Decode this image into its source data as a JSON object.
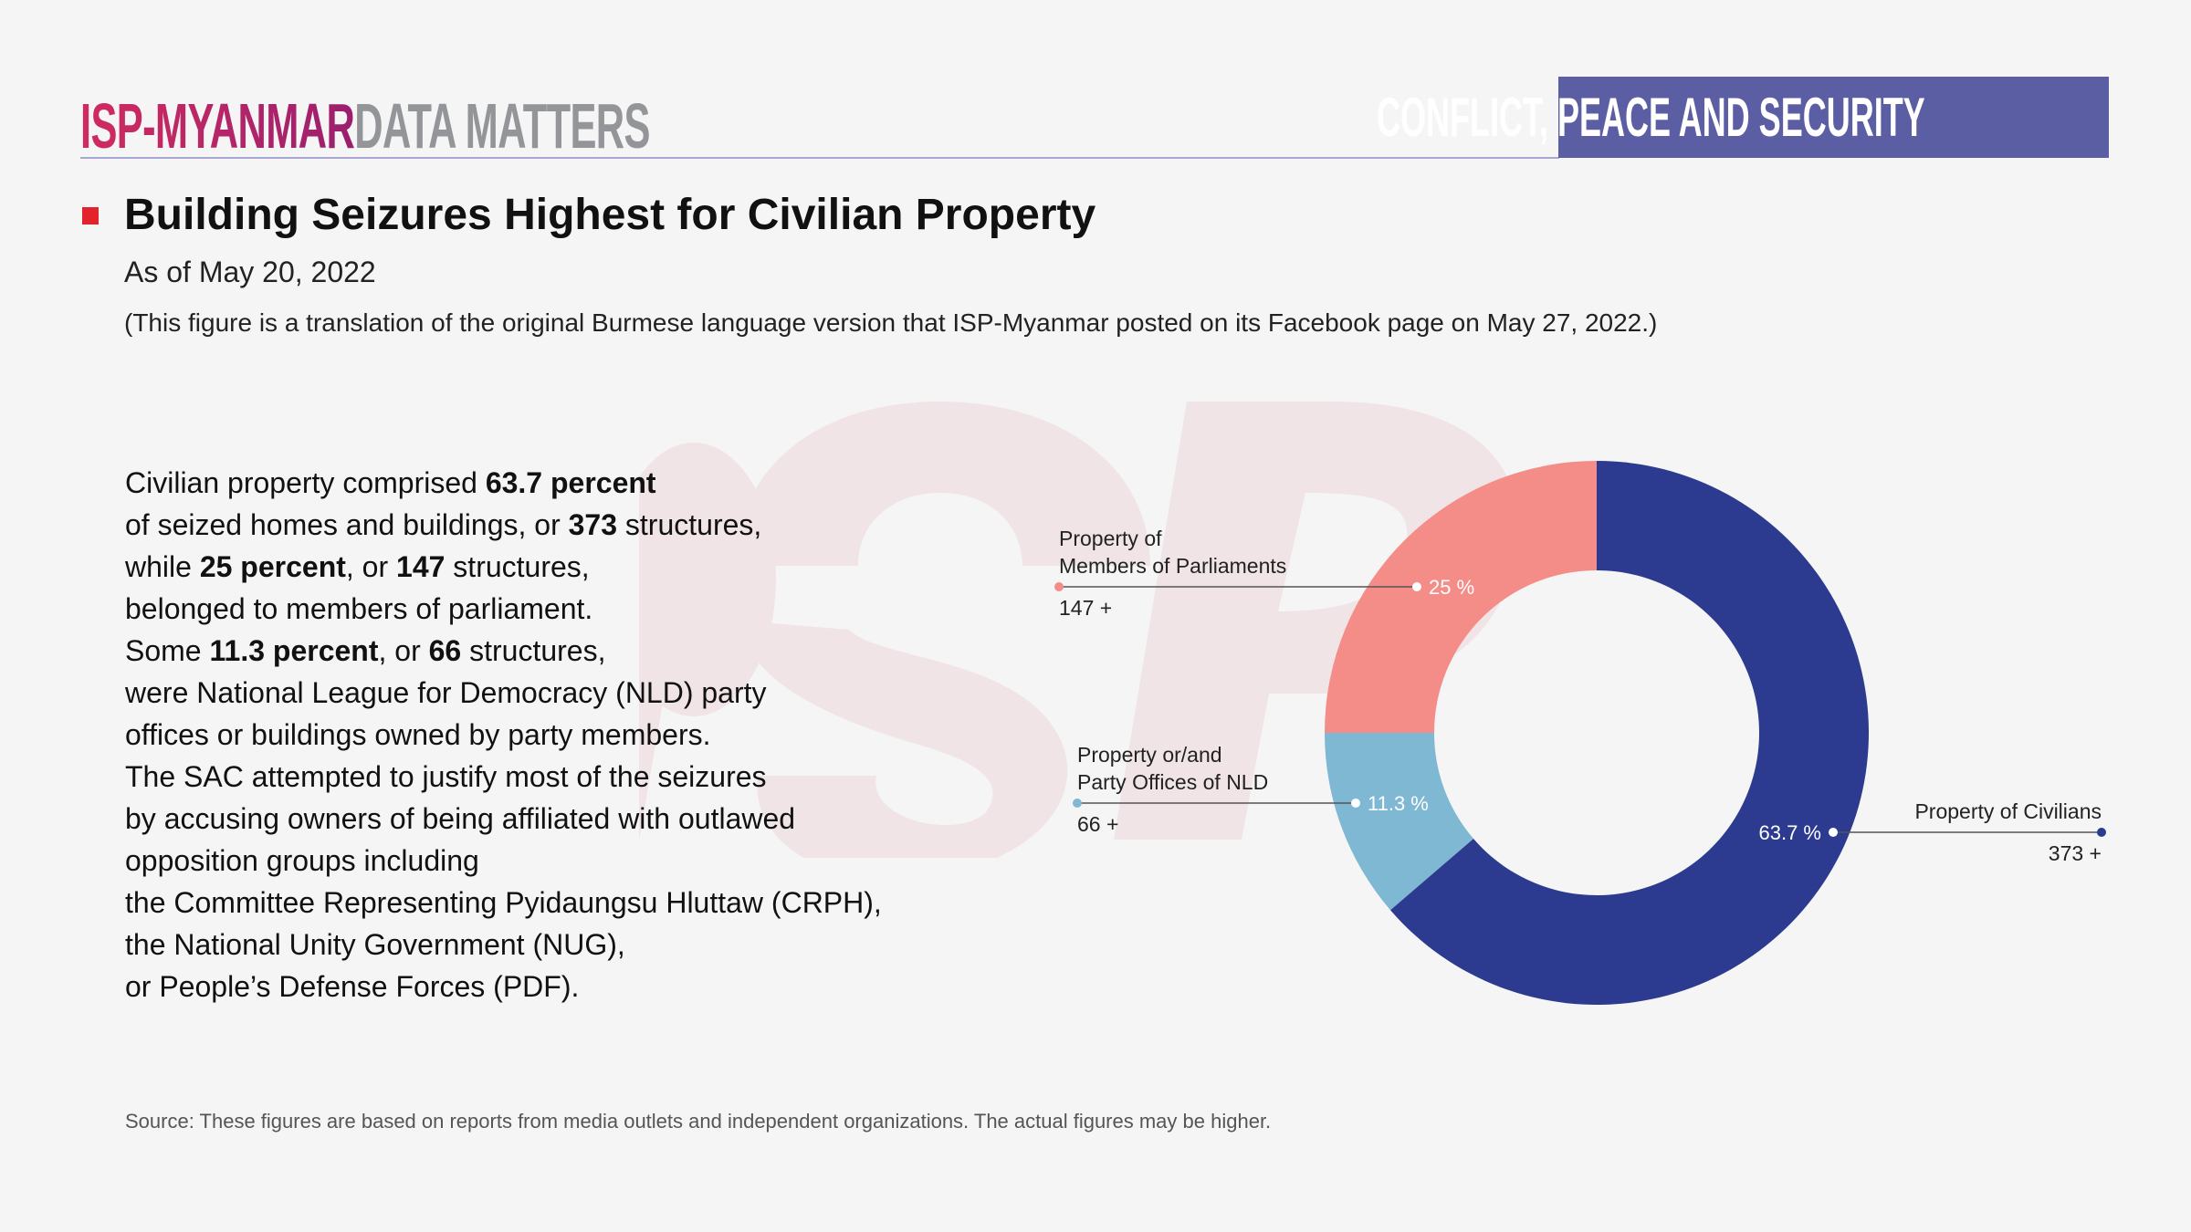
{
  "header": {
    "brand_primary": "ISP-MYANMAR",
    "brand_secondary": "DATA MATTERS",
    "category_badge": "CONFLICT, PEACE AND SECURITY",
    "colors": {
      "brand_primary": "#C42A66",
      "brand_secondary": "#939598",
      "badge": "#5C5EA4",
      "rule": "#A9A6D1",
      "title_marker": "#E3232C"
    }
  },
  "title": "Building Seizures Highest for Civilian Property",
  "subtitle": "As of May 20, 2022",
  "note": "(This figure is a translation of the original Burmese language version that ISP-Myanmar posted on its Facebook page on May 27, 2022.)",
  "body": {
    "lines": [
      [
        {
          "t": "Civilian property comprised "
        },
        {
          "t": "63.7 percent",
          "b": true
        }
      ],
      [
        {
          "t": "of seized homes and buildings, or "
        },
        {
          "t": "373",
          "b": true
        },
        {
          "t": " structures,"
        }
      ],
      [
        {
          "t": "while "
        },
        {
          "t": "25 percent",
          "b": true
        },
        {
          "t": ", or "
        },
        {
          "t": "147",
          "b": true
        },
        {
          "t": " structures,"
        }
      ],
      [
        {
          "t": "belonged to members of parliament."
        }
      ],
      [
        {
          "t": "Some "
        },
        {
          "t": "11.3 percent",
          "b": true
        },
        {
          "t": ", or "
        },
        {
          "t": "66",
          "b": true
        },
        {
          "t": " structures,"
        }
      ],
      [
        {
          "t": "were National League for Democracy (NLD) party"
        }
      ],
      [
        {
          "t": "offices or buildings owned by party members."
        }
      ],
      [
        {
          "t": "The SAC attempted to justify most of the seizures"
        }
      ],
      [
        {
          "t": "by accusing owners of being affiliated with outlawed"
        }
      ],
      [
        {
          "t": "opposition groups including"
        }
      ],
      [
        {
          "t": "the Committee Representing Pyidaungsu Hluttaw (CRPH),"
        }
      ],
      [
        {
          "t": "the National Unity Government (NUG),"
        }
      ],
      [
        {
          "t": "or People’s Defense Forces (PDF)."
        }
      ]
    ]
  },
  "source": "Source: These figures are based on reports from media outlets and independent organizations. The actual figures may be higher.",
  "watermark": "isp",
  "chart_data": {
    "type": "pie",
    "variant": "donut",
    "title": "Building Seizures Highest for Civilian Property",
    "start": "12 o'clock, clockwise",
    "series": [
      {
        "name": "Property of Civilians",
        "label_lines": [
          "Property of Civilians"
        ],
        "percent": 63.7,
        "percent_label": "63.7 %",
        "count": 373,
        "count_label": "373 +",
        "color": "#2C3B8F",
        "label_side": "right"
      },
      {
        "name": "Property or/and Party Offices of NLD",
        "label_lines": [
          "Property or/and",
          "Party Offices of NLD"
        ],
        "percent": 11.3,
        "percent_label": "11.3 %",
        "count": 66,
        "count_label": "66 +",
        "color": "#7FB8D3",
        "label_side": "left"
      },
      {
        "name": "Property of Members of Parliaments",
        "label_lines": [
          "Property of",
          "Members of Parliaments"
        ],
        "percent": 25,
        "percent_label": "25 %",
        "count": 147,
        "count_label": "147 +",
        "color": "#F48C88",
        "label_side": "left"
      }
    ]
  }
}
